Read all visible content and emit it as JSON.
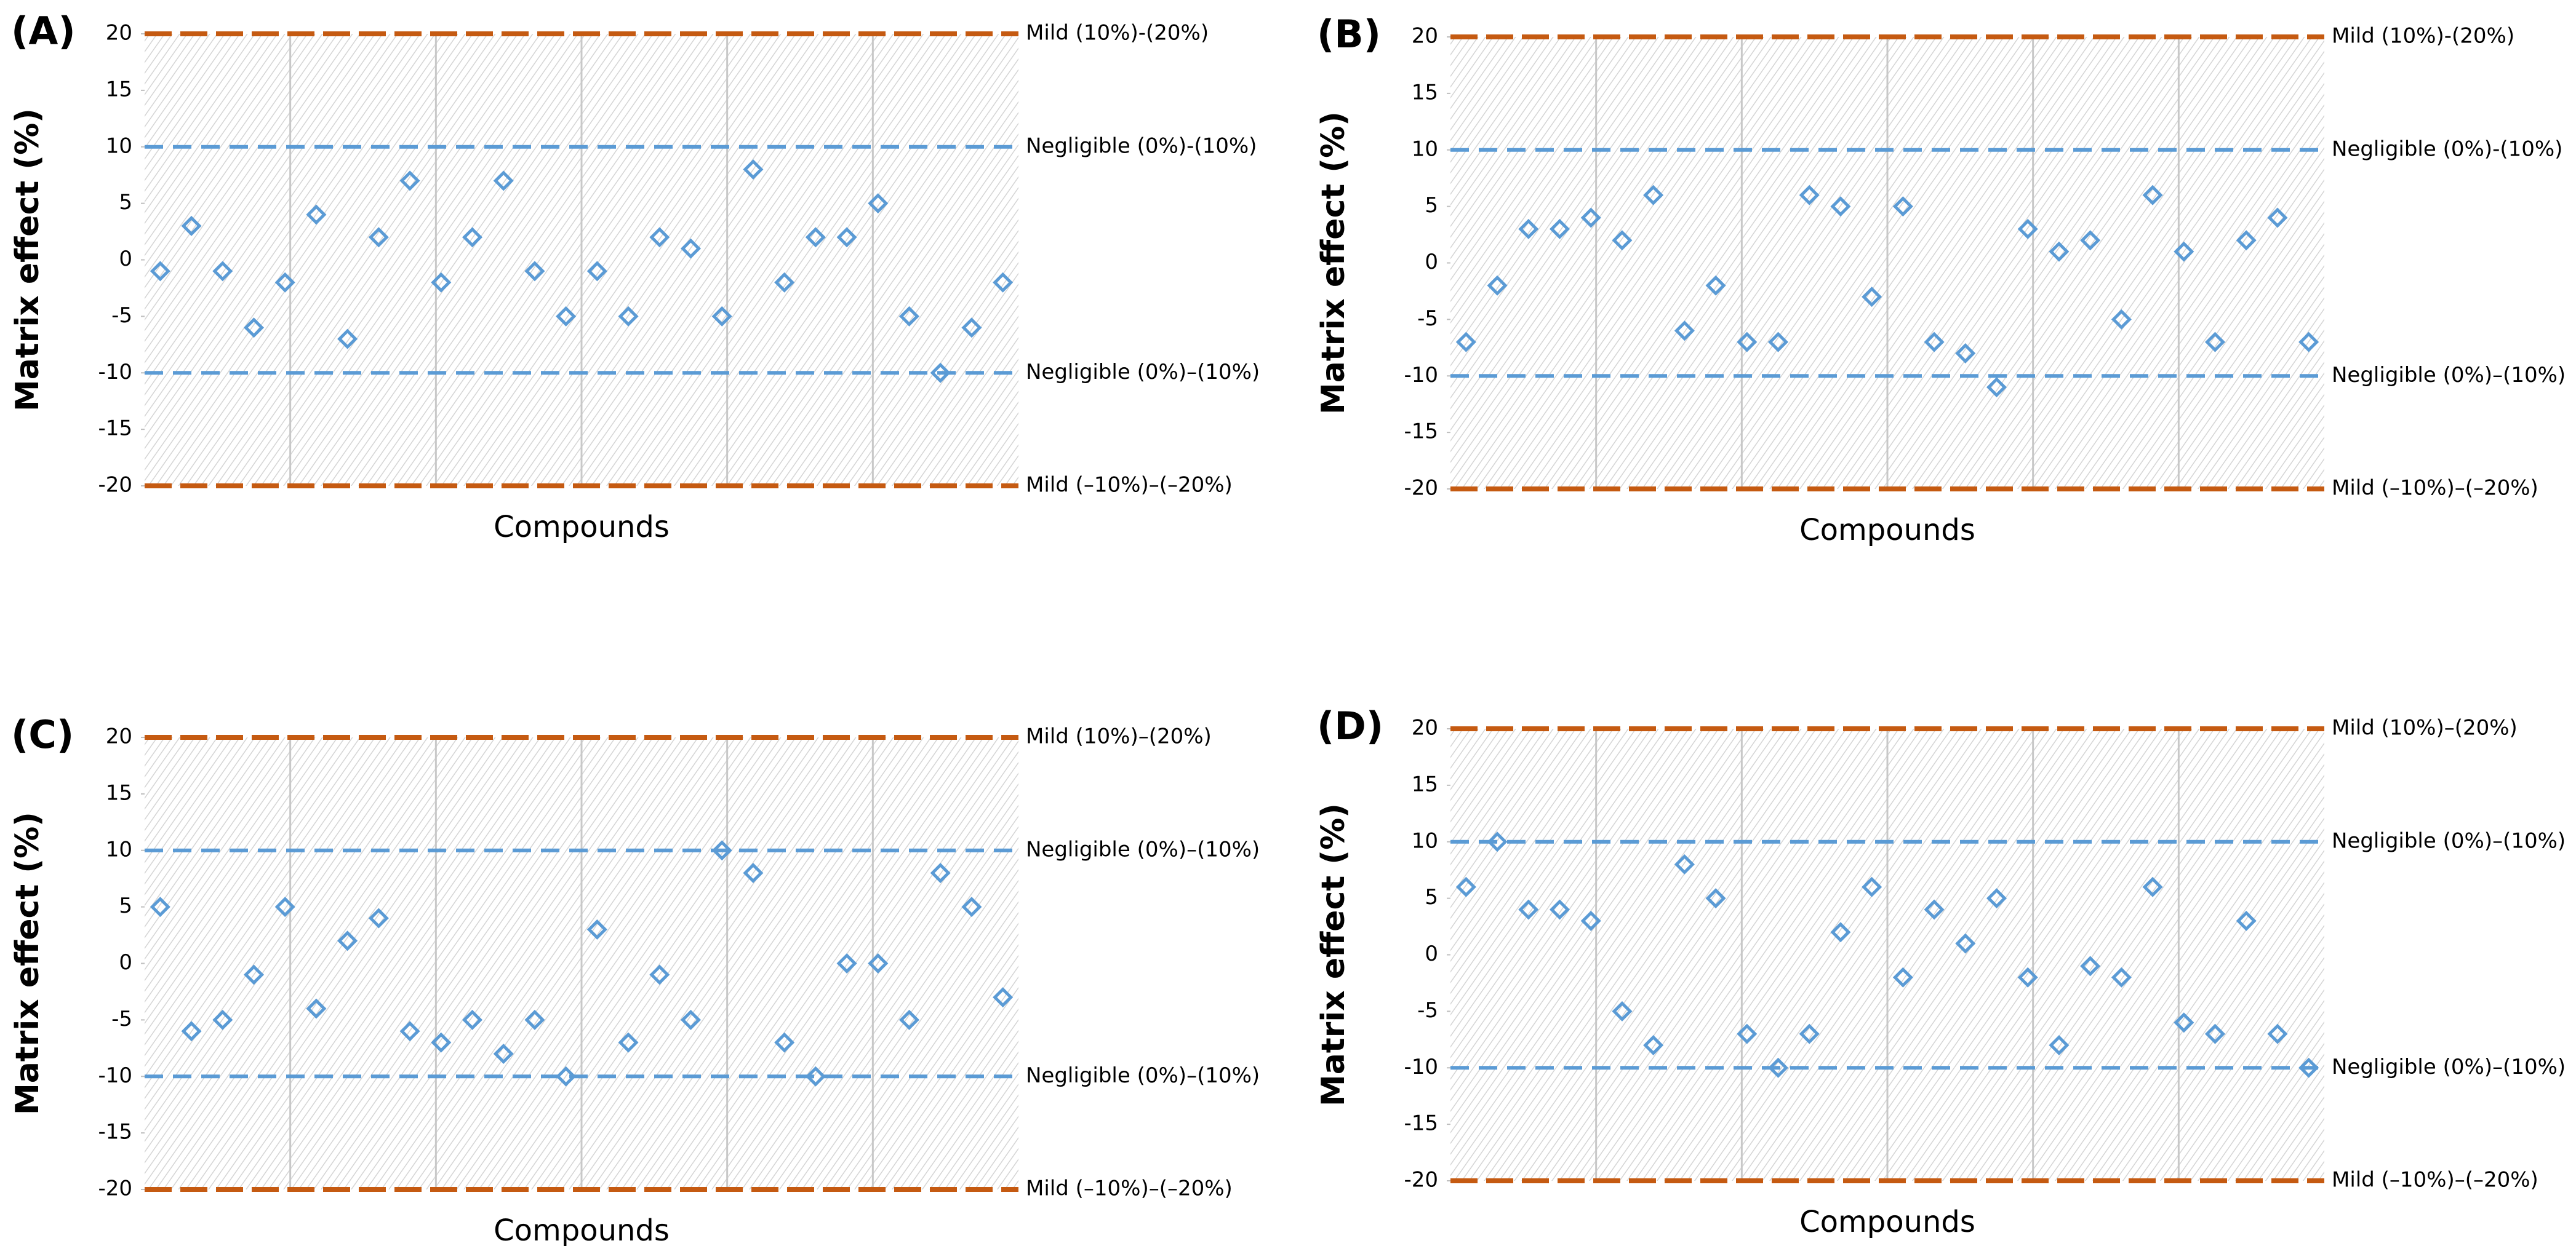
{
  "chart_data": [
    {
      "type": "scatter",
      "title": "(A)",
      "x_label": "Compounds",
      "y_label": "Matrix effect (%)",
      "categories": [
        null,
        null,
        null,
        null,
        null,
        null,
        null,
        null,
        null,
        null,
        null,
        null,
        null,
        null,
        null,
        null,
        null,
        null,
        null,
        null,
        null,
        null,
        null,
        null,
        null,
        null,
        null,
        null
      ],
      "values": [
        -1,
        3,
        -1,
        -6,
        -2,
        4,
        -7,
        2,
        7,
        -2,
        2,
        7,
        -1,
        -5,
        -1,
        -5,
        2,
        1,
        -5,
        8,
        -2,
        2,
        2,
        5,
        -5,
        -10,
        -6,
        -2
      ],
      "color": "#5b9bd5",
      "marker": "diamond",
      "ylim": [
        -20,
        20
      ],
      "yticks": [
        -20,
        -15,
        -10,
        -5,
        0,
        5,
        10,
        15,
        20
      ],
      "ref_lines": [
        {
          "value": 20,
          "label": "Mild  (10%)-(20%)",
          "color": "#c55a11"
        },
        {
          "value": 10,
          "label": "Negligible (0%)-(10%)",
          "color": "#5b9bd5"
        },
        {
          "value": -10,
          "label": "Negligible (0%)–(10%)",
          "color": "#5b9bd5"
        },
        {
          "value": -20,
          "label": "Mild  (–10%)–(–20%)",
          "color": "#c55a11"
        }
      ]
    },
    {
      "type": "scatter",
      "title": "(B)",
      "x_label": "Compounds",
      "y_label": "Matrix effect (%)",
      "categories": [
        null,
        null,
        null,
        null,
        null,
        null,
        null,
        null,
        null,
        null,
        null,
        null,
        null,
        null,
        null,
        null,
        null,
        null,
        null,
        null,
        null,
        null,
        null,
        null,
        null,
        null,
        null,
        null
      ],
      "values": [
        -7,
        -2,
        3,
        3,
        4,
        2,
        6,
        -6,
        -2,
        -7,
        -7,
        6,
        5,
        -3,
        5,
        -7,
        -8,
        -11,
        3,
        1,
        2,
        -5,
        6,
        1,
        -7,
        2,
        4,
        -7
      ],
      "color": "#5b9bd5",
      "marker": "diamond",
      "ylim": [
        -20,
        20
      ],
      "yticks": [
        -20,
        -15,
        -10,
        -5,
        0,
        5,
        10,
        15,
        20
      ],
      "ref_lines": [
        {
          "value": 20,
          "label": "Mild  (10%)-(20%)",
          "color": "#c55a11"
        },
        {
          "value": 10,
          "label": "Negligible (0%)-(10%)",
          "color": "#5b9bd5"
        },
        {
          "value": -10,
          "label": "Negligible (0%)–(10%)",
          "color": "#5b9bd5"
        },
        {
          "value": -20,
          "label": "Mild  (–10%)–(–20%)",
          "color": "#c55a11"
        }
      ]
    },
    {
      "type": "scatter",
      "title": "(C)",
      "x_label": "Compounds",
      "y_label": "Matrix effect (%)",
      "categories": [
        null,
        null,
        null,
        null,
        null,
        null,
        null,
        null,
        null,
        null,
        null,
        null,
        null,
        null,
        null,
        null,
        null,
        null,
        null,
        null,
        null,
        null,
        null,
        null,
        null,
        null,
        null,
        null
      ],
      "values": [
        5,
        -6,
        -5,
        -1,
        5,
        -4,
        2,
        4,
        -6,
        -7,
        -5,
        -8,
        -5,
        -10,
        3,
        -7,
        -1,
        -5,
        10,
        8,
        -7,
        -10,
        0,
        0,
        -5,
        8,
        5,
        -3
      ],
      "color": "#5b9bd5",
      "marker": "diamond",
      "ylim": [
        -20,
        20
      ],
      "yticks": [
        -20,
        -15,
        -10,
        -5,
        0,
        5,
        10,
        15,
        20
      ],
      "ref_lines": [
        {
          "value": 20,
          "label": "Mild  (10%)–(20%)",
          "color": "#c55a11"
        },
        {
          "value": 10,
          "label": "Negligible (0%)–(10%)",
          "color": "#5b9bd5"
        },
        {
          "value": -10,
          "label": "Negligible (0%)–(10%)",
          "color": "#5b9bd5"
        },
        {
          "value": -20,
          "label": "Mild  (–10%)–(–20%)",
          "color": "#c55a11"
        }
      ]
    },
    {
      "type": "scatter",
      "title": "(D)",
      "x_label": "Compounds",
      "y_label": "Matrix effect (%)",
      "categories": [
        null,
        null,
        null,
        null,
        null,
        null,
        null,
        null,
        null,
        null,
        null,
        null,
        null,
        null,
        null,
        null,
        null,
        null,
        null,
        null,
        null,
        null,
        null,
        null,
        null,
        null,
        null,
        null
      ],
      "values": [
        6,
        10,
        4,
        4,
        3,
        -5,
        -8,
        8,
        5,
        -7,
        -10,
        -7,
        2,
        6,
        -2,
        4,
        1,
        5,
        -2,
        -8,
        -1,
        -2,
        6,
        -6,
        -7,
        3,
        -7,
        -10
      ],
      "color": "#5b9bd5",
      "marker": "diamond",
      "ylim": [
        -20,
        20
      ],
      "yticks": [
        -20,
        -15,
        -10,
        -5,
        0,
        5,
        10,
        15,
        20
      ],
      "ref_lines": [
        {
          "value": 20,
          "label": "Mild  (10%)–(20%)",
          "color": "#c55a11"
        },
        {
          "value": 10,
          "label": "Negligible (0%)–(10%)",
          "color": "#5b9bd5"
        },
        {
          "value": -10,
          "label": "Negligible (0%)–(10%)",
          "color": "#5b9bd5"
        },
        {
          "value": -20,
          "label": "Mild  (–10%)–(–20%)",
          "color": "#c55a11"
        }
      ]
    }
  ]
}
